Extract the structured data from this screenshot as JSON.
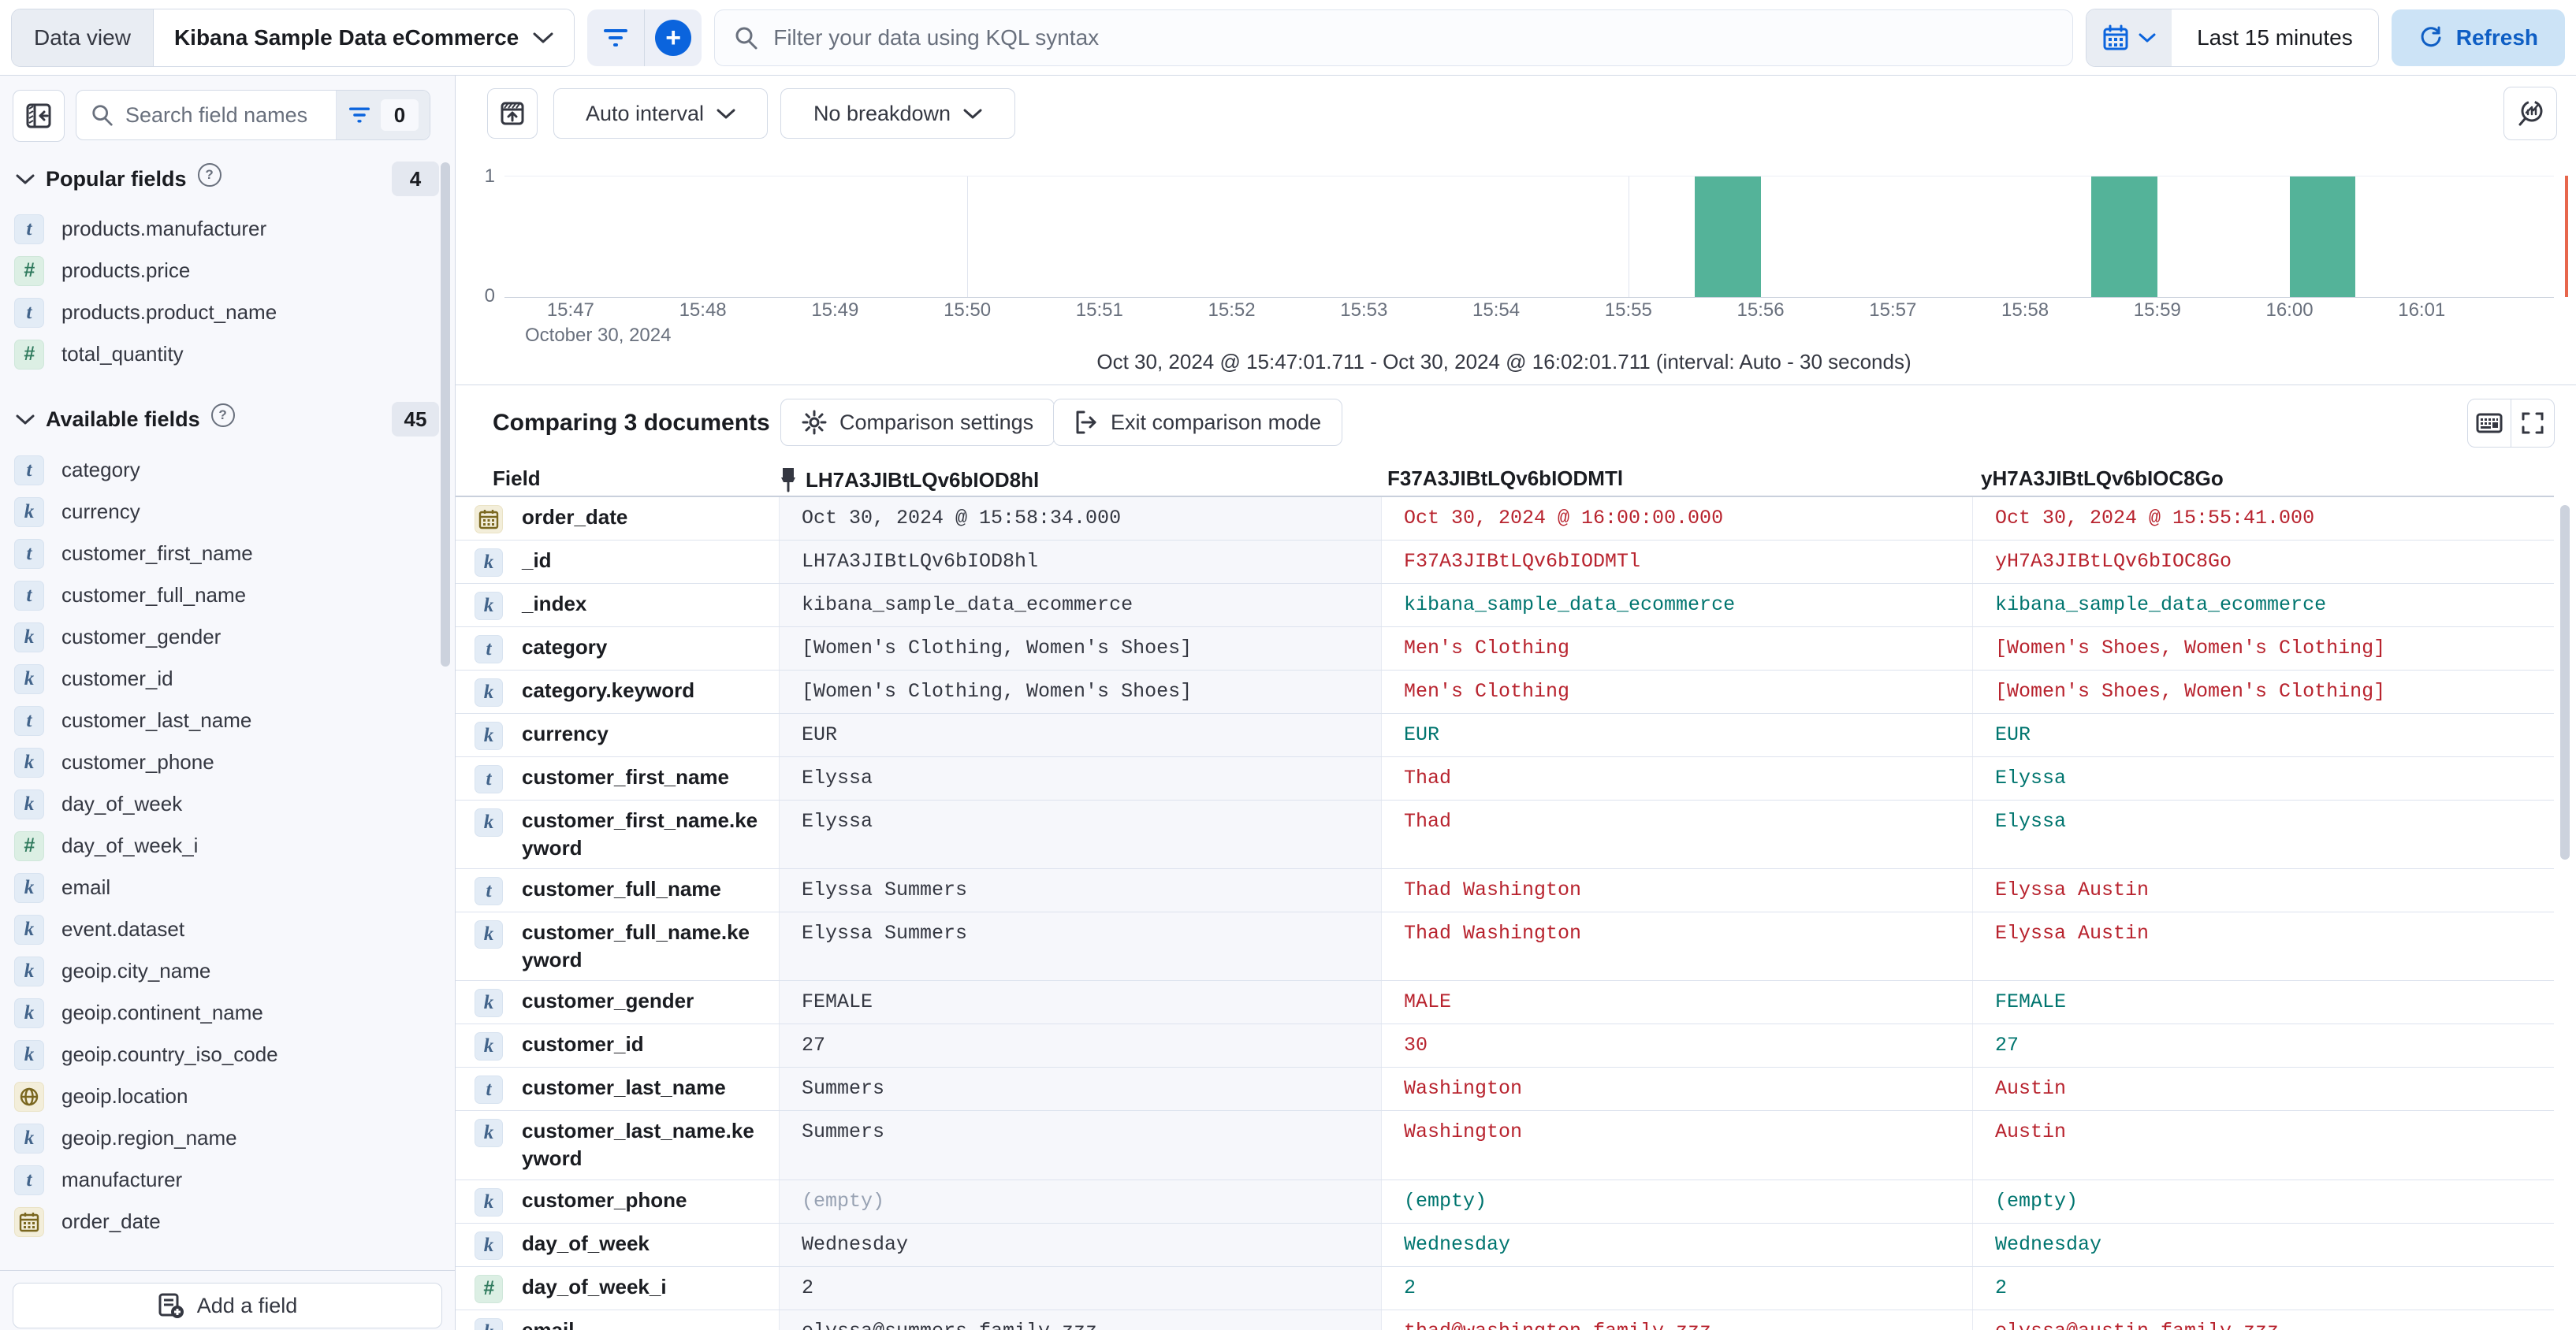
{
  "topbar": {
    "data_view_label": "Data view",
    "data_view_value": "Kibana Sample Data eCommerce",
    "kql_placeholder": "Filter your data using KQL syntax",
    "time_range": "Last 15 minutes",
    "refresh_label": "Refresh"
  },
  "sidebar": {
    "search_placeholder": "Search field names",
    "filter_count": "0",
    "popular": {
      "title": "Popular fields",
      "count": "4",
      "items": [
        {
          "type": "text",
          "label": "products.manufacturer"
        },
        {
          "type": "number",
          "label": "products.price"
        },
        {
          "type": "text",
          "label": "products.product_name"
        },
        {
          "type": "number",
          "label": "total_quantity"
        }
      ]
    },
    "available": {
      "title": "Available fields",
      "count": "45",
      "items": [
        {
          "type": "text",
          "label": "category"
        },
        {
          "type": "keyword",
          "label": "currency"
        },
        {
          "type": "text",
          "label": "customer_first_name"
        },
        {
          "type": "text",
          "label": "customer_full_name"
        },
        {
          "type": "keyword",
          "label": "customer_gender"
        },
        {
          "type": "keyword",
          "label": "customer_id"
        },
        {
          "type": "text",
          "label": "customer_last_name"
        },
        {
          "type": "keyword",
          "label": "customer_phone"
        },
        {
          "type": "keyword",
          "label": "day_of_week"
        },
        {
          "type": "number",
          "label": "day_of_week_i"
        },
        {
          "type": "keyword",
          "label": "email"
        },
        {
          "type": "keyword",
          "label": "event.dataset"
        },
        {
          "type": "keyword",
          "label": "geoip.city_name"
        },
        {
          "type": "keyword",
          "label": "geoip.continent_name"
        },
        {
          "type": "keyword",
          "label": "geoip.country_iso_code"
        },
        {
          "type": "geo",
          "label": "geoip.location"
        },
        {
          "type": "keyword",
          "label": "geoip.region_name"
        },
        {
          "type": "text",
          "label": "manufacturer"
        },
        {
          "type": "date",
          "label": "order_date"
        }
      ]
    },
    "add_field_label": "Add a field"
  },
  "chart": {
    "controls": {
      "interval": "Auto interval",
      "breakdown": "No breakdown"
    },
    "subtitle": "Oct 30, 2024 @ 15:47:01.711 - Oct 30, 2024 @ 16:02:01.711 (interval: Auto - 30 seconds)",
    "chart_data": {
      "type": "bar",
      "title": "",
      "xlabel": "October 30, 2024",
      "ylabel": "",
      "ylim": [
        0,
        1
      ],
      "y_ticks": [
        "1",
        "0"
      ],
      "x_tick_labels": [
        "15:47",
        "15:48",
        "15:49",
        "15:50",
        "15:51",
        "15:52",
        "15:53",
        "15:54",
        "15:55",
        "15:56",
        "15:57",
        "15:58",
        "15:59",
        "16:00",
        "16:01"
      ],
      "axis_window": {
        "start": "15:46:30",
        "end": "16:02:00"
      },
      "gridline_times": [
        "15:50:00",
        "15:55:00",
        "16:00:00"
      ],
      "bars": [
        {
          "start": "15:55:30",
          "seconds": 30,
          "count": 1
        },
        {
          "start": "15:58:30",
          "seconds": 30,
          "count": 1
        },
        {
          "start": "16:00:00",
          "seconds": 30,
          "count": 1
        }
      ],
      "bar_color": "#54b399",
      "end_marker_color": "#e7664c",
      "legend": "off"
    }
  },
  "comparison": {
    "heading": "Comparing 3 documents",
    "settings_label": "Comparison settings",
    "exit_label": "Exit comparison mode",
    "field_header": "Field",
    "doc_ids": [
      "LH7A3JIBtLQv6bIOD8hl",
      "F37A3JIBtLQv6bIODMTl",
      "yH7A3JIBtLQv6bIOC8Go"
    ],
    "colors": {
      "diff": "#b8232e",
      "match": "#00756f",
      "base_column_bg": "#f6f7fb"
    },
    "rows": [
      {
        "field": "order_date",
        "type": "date",
        "base": "Oct 30, 2024 @ 15:58:34.000",
        "docs": [
          {
            "value": "Oct 30, 2024 @ 16:00:00.000",
            "status": "diff"
          },
          {
            "value": "Oct 30, 2024 @ 15:55:41.000",
            "status": "diff"
          }
        ]
      },
      {
        "field": "_id",
        "type": "keyword",
        "base": "LH7A3JIBtLQv6bIOD8hl",
        "docs": [
          {
            "value": "F37A3JIBtLQv6bIODMTl",
            "status": "diff"
          },
          {
            "value": "yH7A3JIBtLQv6bIOC8Go",
            "status": "diff"
          }
        ]
      },
      {
        "field": "_index",
        "type": "keyword",
        "base": "kibana_sample_data_ecommerce",
        "docs": [
          {
            "value": "kibana_sample_data_ecommerce",
            "status": "match"
          },
          {
            "value": "kibana_sample_data_ecommerce",
            "status": "match"
          }
        ]
      },
      {
        "field": "category",
        "type": "text",
        "base": "[Women's Clothing, Women's Shoes]",
        "docs": [
          {
            "value": "Men's Clothing",
            "status": "diff"
          },
          {
            "value": "[Women's Shoes, Women's Clothing]",
            "status": "diff"
          }
        ]
      },
      {
        "field": "category.keyword",
        "type": "keyword",
        "base": "[Women's Clothing, Women's Shoes]",
        "docs": [
          {
            "value": "Men's Clothing",
            "status": "diff"
          },
          {
            "value": "[Women's Shoes, Women's Clothing]",
            "status": "diff"
          }
        ]
      },
      {
        "field": "currency",
        "type": "keyword",
        "base": "EUR",
        "docs": [
          {
            "value": "EUR",
            "status": "match"
          },
          {
            "value": "EUR",
            "status": "match"
          }
        ]
      },
      {
        "field": "customer_first_name",
        "type": "text",
        "base": "Elyssa",
        "docs": [
          {
            "value": "Thad",
            "status": "diff"
          },
          {
            "value": "Elyssa",
            "status": "match"
          }
        ]
      },
      {
        "field": "customer_first_name.keyword",
        "type": "keyword",
        "base": "Elyssa",
        "docs": [
          {
            "value": "Thad",
            "status": "diff"
          },
          {
            "value": "Elyssa",
            "status": "match"
          }
        ]
      },
      {
        "field": "customer_full_name",
        "type": "text",
        "base": "Elyssa Summers",
        "docs": [
          {
            "value": "Thad Washington",
            "status": "diff"
          },
          {
            "value": "Elyssa Austin",
            "status": "diff"
          }
        ]
      },
      {
        "field": "customer_full_name.keyword",
        "type": "keyword",
        "base": "Elyssa Summers",
        "docs": [
          {
            "value": "Thad Washington",
            "status": "diff"
          },
          {
            "value": "Elyssa Austin",
            "status": "diff"
          }
        ]
      },
      {
        "field": "customer_gender",
        "type": "keyword",
        "base": "FEMALE",
        "docs": [
          {
            "value": "MALE",
            "status": "diff"
          },
          {
            "value": "FEMALE",
            "status": "match"
          }
        ]
      },
      {
        "field": "customer_id",
        "type": "keyword",
        "base": "27",
        "docs": [
          {
            "value": "30",
            "status": "diff"
          },
          {
            "value": "27",
            "status": "match"
          }
        ]
      },
      {
        "field": "customer_last_name",
        "type": "text",
        "base": "Summers",
        "docs": [
          {
            "value": "Washington",
            "status": "diff"
          },
          {
            "value": "Austin",
            "status": "diff"
          }
        ]
      },
      {
        "field": "customer_last_name.keyword",
        "type": "keyword",
        "base": "Summers",
        "docs": [
          {
            "value": "Washington",
            "status": "diff"
          },
          {
            "value": "Austin",
            "status": "diff"
          }
        ]
      },
      {
        "field": "customer_phone",
        "type": "keyword",
        "base": "(empty)",
        "docs": [
          {
            "value": "(empty)",
            "status": "match"
          },
          {
            "value": "(empty)",
            "status": "match"
          }
        ]
      },
      {
        "field": "day_of_week",
        "type": "keyword",
        "base": "Wednesday",
        "docs": [
          {
            "value": "Wednesday",
            "status": "match"
          },
          {
            "value": "Wednesday",
            "status": "match"
          }
        ]
      },
      {
        "field": "day_of_week_i",
        "type": "number",
        "base": "2",
        "docs": [
          {
            "value": "2",
            "status": "match"
          },
          {
            "value": "2",
            "status": "match"
          }
        ]
      },
      {
        "field": "email",
        "type": "keyword",
        "base": "elyssa@summers-family.zzz",
        "docs": [
          {
            "value": "thad@washington-family.zzz",
            "status": "diff"
          },
          {
            "value": "elyssa@austin-family.zzz",
            "status": "diff"
          }
        ]
      }
    ]
  }
}
